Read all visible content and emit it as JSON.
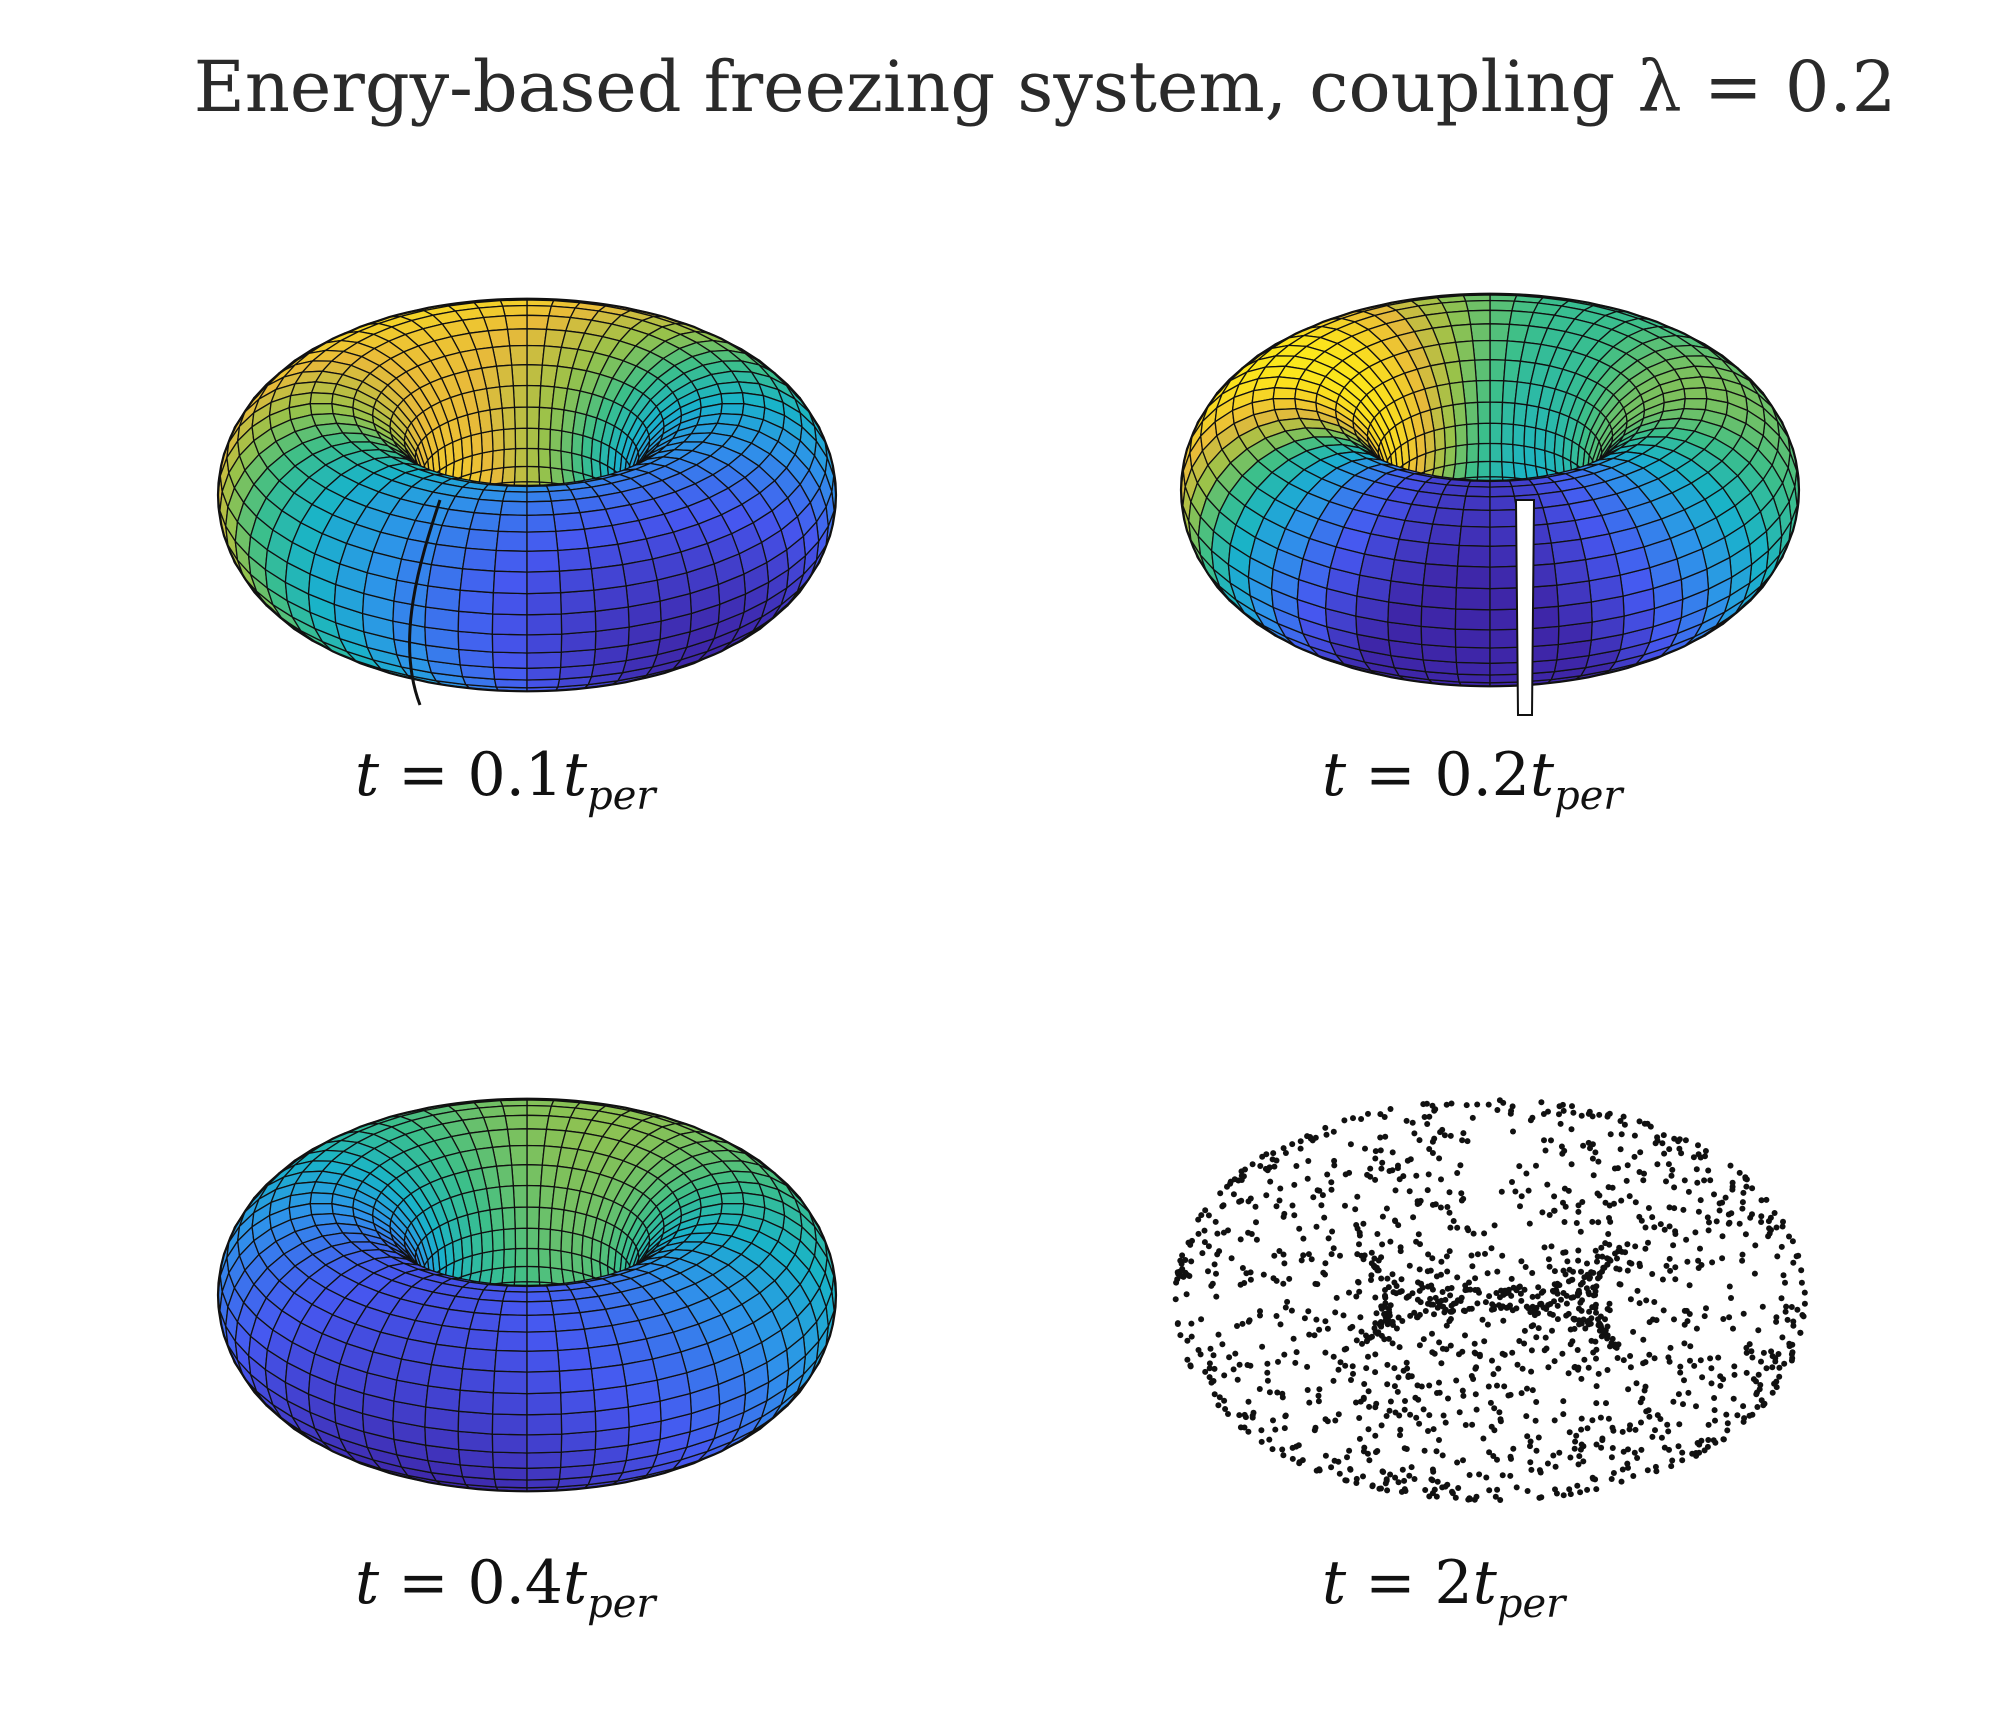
{
  "title": "Energy-based freezing system, coupling λ = 0.2",
  "panels": [
    {
      "var": "t",
      "eq": " = 0.1",
      "t": "t",
      "sub": "per"
    },
    {
      "var": "t",
      "eq": " = 0.2",
      "t": "t",
      "sub": "per"
    },
    {
      "var": "t",
      "eq": " = 0.4",
      "t": "t",
      "sub": "per"
    },
    {
      "var": "t",
      "eq": " = 2",
      "t": "t",
      "sub": "per"
    }
  ],
  "colormap": [
    "#3e26a8",
    "#4658f0",
    "#2e93ea",
    "#19b3c9",
    "#3cbf8a",
    "#99c24a",
    "#e8ba3a",
    "#fbe01e",
    "#f9fb15"
  ]
}
